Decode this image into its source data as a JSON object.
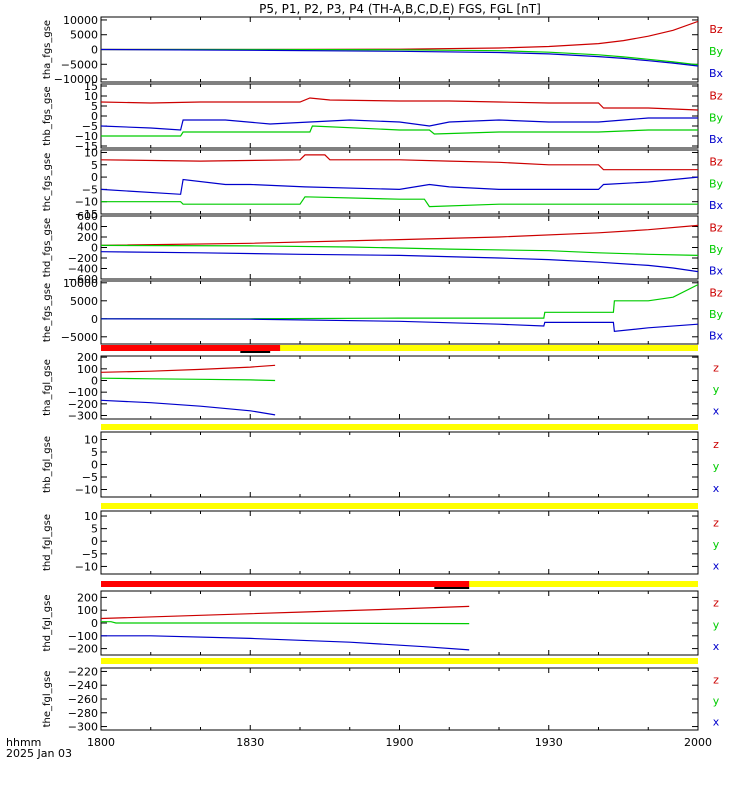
{
  "title": "P5, P1, P2, P3, P4 (TH-A,B,C,D,E) FGS, FGL [nT]",
  "time_axis": {
    "ticks": [
      "1800",
      "1830",
      "1900",
      "1930",
      "2000"
    ],
    "row_label": "hhmm",
    "date_label": "2025 Jan 03",
    "range_minutes": [
      0,
      120
    ]
  },
  "colors": {
    "z": "#cc0000",
    "y": "#00cc00",
    "x": "#0000cc",
    "bar_full": "#ff0000",
    "bar_none": "#ffff00",
    "bar_mark": "#000000"
  },
  "chart_data": [
    {
      "type": "line",
      "ylabel": "tha_fgs_gse",
      "ylim": [
        -11000,
        11000
      ],
      "yticks": [
        "10000",
        "5000",
        "0",
        "−5000",
        "−10000"
      ],
      "ytick_values": [
        10000,
        5000,
        0,
        -5000,
        -10000
      ],
      "legend": [
        "Bz",
        "By",
        "Bx"
      ],
      "series": [
        {
          "name": "Bz",
          "color": "z",
          "x": [
            0,
            30,
            60,
            80,
            90,
            100,
            105,
            110,
            115,
            120
          ],
          "y": [
            0,
            0,
            100,
            500,
            1000,
            2000,
            3000,
            4500,
            6500,
            9500
          ]
        },
        {
          "name": "By",
          "color": "y",
          "x": [
            0,
            30,
            60,
            80,
            90,
            100,
            105,
            110,
            115,
            120
          ],
          "y": [
            0,
            0,
            -100,
            -400,
            -900,
            -1800,
            -2500,
            -3300,
            -4200,
            -5200
          ]
        },
        {
          "name": "Bx",
          "color": "x",
          "x": [
            0,
            34,
            60,
            80,
            90,
            100,
            105,
            110,
            115,
            120
          ],
          "y": [
            0,
            -300,
            -600,
            -1000,
            -1500,
            -2400,
            -3000,
            -3800,
            -4600,
            -5600
          ]
        }
      ]
    },
    {
      "type": "line",
      "ylabel": "thb_fgs_gse",
      "ylim": [
        -16,
        16
      ],
      "yticks": [
        "15",
        "10",
        "5",
        "0",
        "−5",
        "−10",
        "−15"
      ],
      "ytick_values": [
        15,
        10,
        5,
        0,
        -5,
        -10,
        -15
      ],
      "legend": [
        "Bz",
        "By",
        "Bx"
      ],
      "series": [
        {
          "name": "Bz",
          "color": "z",
          "x": [
            0,
            10,
            20,
            30,
            40,
            42,
            46,
            60,
            70,
            80,
            90,
            100,
            101,
            110,
            120
          ],
          "y": [
            7,
            6.5,
            7,
            7,
            7,
            9,
            8,
            7.5,
            7.5,
            7,
            6.5,
            6.5,
            4,
            4,
            3
          ]
        },
        {
          "name": "By",
          "color": "y",
          "x": [
            0,
            10,
            16,
            16.5,
            30,
            42,
            42.5,
            60,
            66,
            67,
            80,
            90,
            100,
            110,
            120
          ],
          "y": [
            -10,
            -10,
            -10,
            -8,
            -8,
            -8,
            -5,
            -7,
            -7,
            -9,
            -8,
            -8,
            -8,
            -7,
            -7
          ]
        },
        {
          "name": "Bx",
          "color": "x",
          "x": [
            0,
            10,
            16,
            16.5,
            25,
            34,
            42,
            50,
            60,
            66,
            70,
            80,
            90,
            100,
            110,
            120
          ],
          "y": [
            -5,
            -6,
            -7,
            -2,
            -2,
            -4,
            -3,
            -2,
            -3,
            -5,
            -3,
            -2,
            -3,
            -3,
            -1,
            -1
          ]
        }
      ]
    },
    {
      "type": "line",
      "ylabel": "thc_fgs_gse",
      "ylim": [
        -15,
        11
      ],
      "yticks": [
        "10",
        "5",
        "0",
        "−5",
        "−10",
        "−15"
      ],
      "ytick_values": [
        10,
        5,
        0,
        -5,
        -10,
        -15
      ],
      "legend": [
        "Bz",
        "By",
        "Bx"
      ],
      "series": [
        {
          "name": "Bz",
          "color": "z",
          "x": [
            0,
            20,
            40,
            41,
            45,
            46,
            60,
            70,
            80,
            90,
            100,
            101,
            110,
            120
          ],
          "y": [
            7,
            6.5,
            7,
            9,
            9,
            7,
            7,
            6.5,
            6,
            5,
            5,
            3,
            3,
            3
          ]
        },
        {
          "name": "By",
          "color": "y",
          "x": [
            0,
            10,
            16,
            16.5,
            40,
            41,
            60,
            65,
            66,
            80,
            100,
            110,
            120
          ],
          "y": [
            -10,
            -10,
            -10,
            -11,
            -11,
            -8,
            -9,
            -9,
            -12,
            -11,
            -11,
            -11,
            -11
          ]
        },
        {
          "name": "Bx",
          "color": "x",
          "x": [
            0,
            16,
            16.5,
            25,
            30,
            41,
            60,
            66,
            70,
            80,
            100,
            101,
            110,
            120
          ],
          "y": [
            -5,
            -7,
            -1,
            -3,
            -3,
            -4,
            -5,
            -3,
            -4,
            -5,
            -5,
            -3,
            -2,
            0
          ]
        }
      ]
    },
    {
      "type": "line",
      "ylabel": "thd_fgs_gse",
      "ylim": [
        -600,
        600
      ],
      "yticks": [
        "600",
        "400",
        "200",
        "0",
        "−200",
        "−400",
        "−600"
      ],
      "ytick_values": [
        600,
        400,
        200,
        0,
        -200,
        -400,
        -600
      ],
      "legend": [
        "Bz",
        "By",
        "Bx"
      ],
      "series": [
        {
          "name": "Bz",
          "color": "z",
          "x": [
            0,
            30,
            60,
            80,
            100,
            110,
            120
          ],
          "y": [
            40,
            80,
            150,
            200,
            280,
            340,
            420
          ]
        },
        {
          "name": "By",
          "color": "y",
          "x": [
            0,
            30,
            50,
            70,
            90,
            100,
            110,
            120
          ],
          "y": [
            40,
            30,
            10,
            -30,
            -60,
            -100,
            -130,
            -150
          ]
        },
        {
          "name": "Bx",
          "color": "x",
          "x": [
            0,
            20,
            40,
            60,
            80,
            90,
            100,
            110,
            115,
            120
          ],
          "y": [
            -80,
            -100,
            -130,
            -150,
            -200,
            -230,
            -280,
            -340,
            -390,
            -460
          ]
        }
      ]
    },
    {
      "type": "line",
      "ylabel": "the_fgs_gse",
      "ylim": [
        -7000,
        10500
      ],
      "yticks": [
        "10000",
        "5000",
        "0",
        "−5000"
      ],
      "ytick_values": [
        10000,
        5000,
        0,
        -5000
      ],
      "legend": [
        "Bz",
        "By",
        "Bx"
      ],
      "series": [
        {
          "name": "By",
          "color": "y",
          "x": [
            0,
            30,
            60,
            89,
            89.2,
            103,
            103.2,
            110,
            115,
            120
          ],
          "y": [
            0,
            0,
            200,
            200,
            1800,
            1800,
            5000,
            5000,
            6000,
            9500
          ]
        },
        {
          "name": "Bx",
          "color": "x",
          "x": [
            0,
            30,
            60,
            80,
            89,
            89.2,
            103,
            103.2,
            110,
            120
          ],
          "y": [
            0,
            -100,
            -700,
            -1500,
            -2000,
            -1000,
            -1000,
            -3500,
            -2500,
            -1500
          ]
        }
      ]
    },
    {
      "type": "line",
      "ylabel": "tha_fgl_gse",
      "ylim": [
        -330,
        210
      ],
      "yticks": [
        "200",
        "100",
        "0",
        "−100",
        "−200",
        "−300"
      ],
      "ytick_values": [
        200,
        100,
        0,
        -100,
        -200,
        -300
      ],
      "legend": [
        "z",
        "y",
        "x"
      ],
      "bar": {
        "full_to": 36,
        "mark": [
          28,
          34
        ]
      },
      "series": [
        {
          "name": "z",
          "color": "z",
          "x": [
            0,
            10,
            20,
            30,
            35
          ],
          "y": [
            70,
            80,
            95,
            115,
            130
          ]
        },
        {
          "name": "y",
          "color": "y",
          "x": [
            0,
            10,
            20,
            30,
            35
          ],
          "y": [
            20,
            15,
            10,
            5,
            0
          ]
        },
        {
          "name": "x",
          "color": "x",
          "x": [
            0,
            10,
            20,
            30,
            35
          ],
          "y": [
            -170,
            -190,
            -220,
            -260,
            -295
          ]
        }
      ]
    },
    {
      "type": "line",
      "ylabel": "thb_fgl_gse",
      "ylim": [
        -13,
        13
      ],
      "yticks": [
        "10",
        "5",
        "0",
        "−5",
        "−10"
      ],
      "ytick_values": [
        10,
        5,
        0,
        -5,
        -10
      ],
      "legend": [
        "z",
        "y",
        "x"
      ],
      "bar": {
        "full_to": 0
      },
      "series": []
    },
    {
      "type": "line",
      "ylabel": "thd_fgl_gse",
      "ylim": [
        -13,
        12
      ],
      "yticks": [
        "10",
        "5",
        "0",
        "−5",
        "−10"
      ],
      "ytick_values": [
        10,
        5,
        0,
        -5,
        -10
      ],
      "legend": [
        "z",
        "y",
        "x"
      ],
      "bar": {
        "full_to": 0
      },
      "series": []
    },
    {
      "type": "line",
      "ylabel": "thd_fgl_gse",
      "ylim": [
        -250,
        250
      ],
      "yticks": [
        "200",
        "100",
        "0",
        "−100",
        "−200"
      ],
      "ytick_values": [
        200,
        100,
        0,
        -100,
        -200
      ],
      "legend": [
        "z",
        "y",
        "x"
      ],
      "bar": {
        "full_to": 74,
        "mark": [
          67,
          74
        ]
      },
      "series": [
        {
          "name": "z",
          "color": "z",
          "x": [
            0,
            20,
            40,
            60,
            74
          ],
          "y": [
            35,
            60,
            85,
            110,
            130
          ]
        },
        {
          "name": "y",
          "color": "y",
          "x": [
            0,
            2,
            3,
            30,
            74
          ],
          "y": [
            10,
            10,
            0,
            0,
            -5
          ]
        },
        {
          "name": "x",
          "color": "x",
          "x": [
            0,
            10,
            30,
            50,
            65,
            74
          ],
          "y": [
            -100,
            -100,
            -120,
            -150,
            -185,
            -210
          ]
        }
      ]
    },
    {
      "type": "line",
      "ylabel": "the_fgl_gse",
      "ylim": [
        -305,
        -215
      ],
      "yticks": [
        "−220",
        "−240",
        "−260",
        "−280",
        "−300"
      ],
      "ytick_values": [
        -220,
        -240,
        -260,
        -280,
        -300
      ],
      "legend": [
        "z",
        "y",
        "x"
      ],
      "bar": {
        "full_to": 0
      },
      "series": []
    }
  ]
}
